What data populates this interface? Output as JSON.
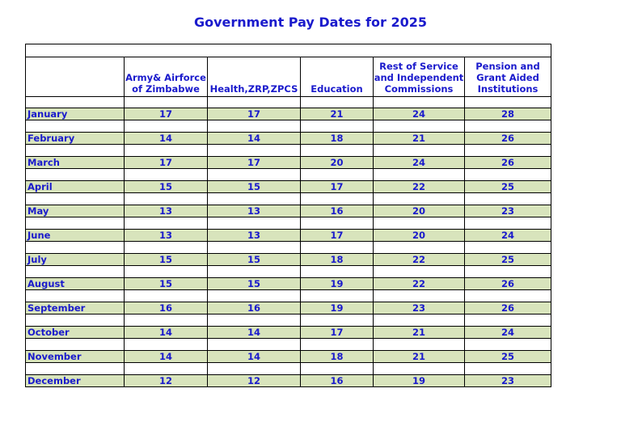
{
  "title": "Government Pay Dates for 2025",
  "headers": [
    "",
    "Army& Airforce of Zimbabwe",
    "Health,ZRP,ZPCS",
    "Education",
    "Rest of Service and Independent Commissions",
    "Pension and Grant Aided Institutions"
  ],
  "rows": [
    {
      "month": "January",
      "army": "17",
      "health": "17",
      "education": "21",
      "rest": "24",
      "pension": "28"
    },
    {
      "month": "February",
      "army": "14",
      "health": "14",
      "education": "18",
      "rest": "21",
      "pension": "26"
    },
    {
      "month": "March",
      "army": "17",
      "health": "17",
      "education": "20",
      "rest": "24",
      "pension": "26"
    },
    {
      "month": "April",
      "army": "15",
      "health": "15",
      "education": "17",
      "rest": "22",
      "pension": "25"
    },
    {
      "month": "May",
      "army": "13",
      "health": "13",
      "education": "16",
      "rest": "20",
      "pension": "23"
    },
    {
      "month": "June",
      "army": "13",
      "health": "13",
      "education": "17",
      "rest": "20",
      "pension": "24"
    },
    {
      "month": "July",
      "army": "15",
      "health": "15",
      "education": "18",
      "rest": "22",
      "pension": "25"
    },
    {
      "month": "August",
      "army": "15",
      "health": "15",
      "education": "19",
      "rest": "22",
      "pension": "26"
    },
    {
      "month": "September",
      "army": "16",
      "health": "16",
      "education": "19",
      "rest": "23",
      "pension": "26"
    },
    {
      "month": "October",
      "army": "14",
      "health": "14",
      "education": "17",
      "rest": "21",
      "pension": "24"
    },
    {
      "month": "November",
      "army": "14",
      "health": "14",
      "education": "18",
      "rest": "21",
      "pension": "25"
    },
    {
      "month": "December",
      "army": "12",
      "health": "12",
      "education": "16",
      "rest": "19",
      "pension": "23"
    }
  ]
}
